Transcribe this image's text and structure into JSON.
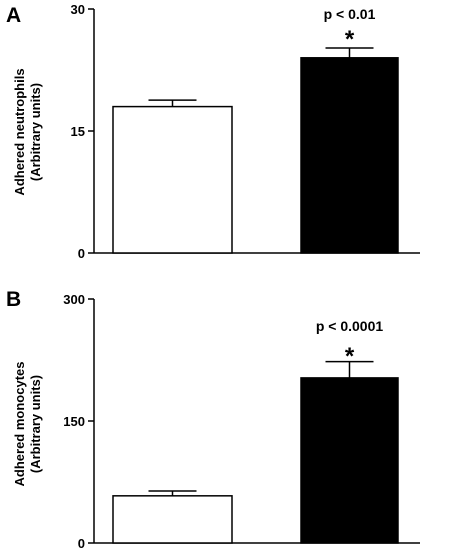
{
  "chart_data": [
    {
      "type": "bar",
      "panel_label": "A",
      "ylabel": [
        "Adhered neutrophils",
        "(Arbitrary units)"
      ],
      "ylim": [
        0,
        30
      ],
      "yticks": [
        "0",
        "15",
        "30"
      ],
      "categories": [
        "",
        ""
      ],
      "values": [
        18,
        24
      ],
      "errors": [
        0.8,
        1.2
      ],
      "bar_colors": [
        "#ffffff",
        "#000000"
      ],
      "significance": [
        "",
        "*"
      ],
      "pvalue": "p < 0.01"
    },
    {
      "type": "bar",
      "panel_label": "B",
      "ylabel": [
        "Adhered monocytes",
        "(Arbitrary units)"
      ],
      "ylim": [
        0,
        300
      ],
      "yticks": [
        "0",
        "150",
        "300"
      ],
      "categories": [
        "",
        ""
      ],
      "values": [
        58,
        203
      ],
      "errors": [
        6,
        20
      ],
      "bar_colors": [
        "#ffffff",
        "#000000"
      ],
      "significance": [
        "",
        "*"
      ],
      "pvalue": "p < 0.0001"
    }
  ]
}
